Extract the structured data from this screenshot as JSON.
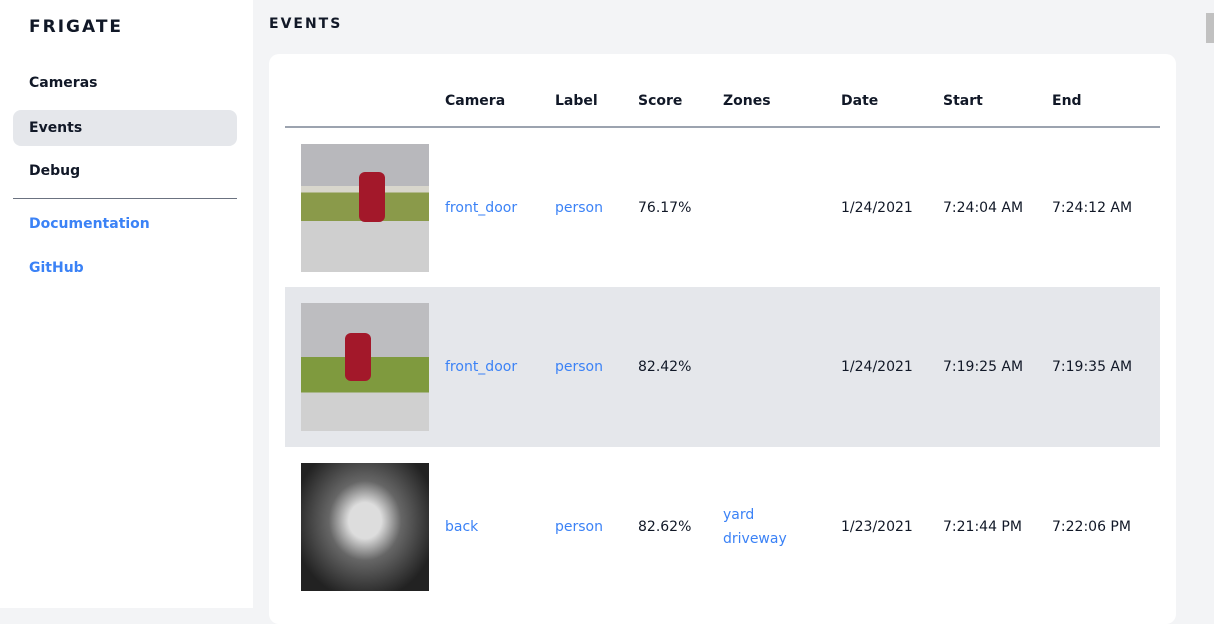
{
  "sidebar": {
    "brand": "FRIGATE",
    "items": [
      {
        "label": "Cameras"
      },
      {
        "label": "Events",
        "active": true
      },
      {
        "label": "Debug"
      }
    ],
    "links": [
      {
        "label": "Documentation"
      },
      {
        "label": "GitHub"
      }
    ]
  },
  "page": {
    "title": "EVENTS"
  },
  "table": {
    "headers": [
      "",
      "Camera",
      "Label",
      "Score",
      "Zones",
      "Date",
      "Start",
      "End"
    ],
    "rows": [
      {
        "camera": "front_door",
        "label": "person",
        "score": "76.17%",
        "zones": [
          "",
          ""
        ],
        "date": "1/24/2021",
        "start": "7:24:04 AM",
        "end": "7:24:12 AM"
      },
      {
        "camera": "front_door",
        "label": "person",
        "score": "82.42%",
        "zones": [
          "",
          ""
        ],
        "date": "1/24/2021",
        "start": "7:19:25 AM",
        "end": "7:19:35 AM"
      },
      {
        "camera": "back",
        "label": "person",
        "score": "82.62%",
        "zones": [
          "yard",
          "driveway"
        ],
        "date": "1/23/2021",
        "start": "7:21:44 PM",
        "end": "7:22:06 PM"
      }
    ]
  },
  "colors": {
    "accent": "#3b82f6",
    "active_bg": "#e5e7eb",
    "background": "#f3f4f6"
  }
}
